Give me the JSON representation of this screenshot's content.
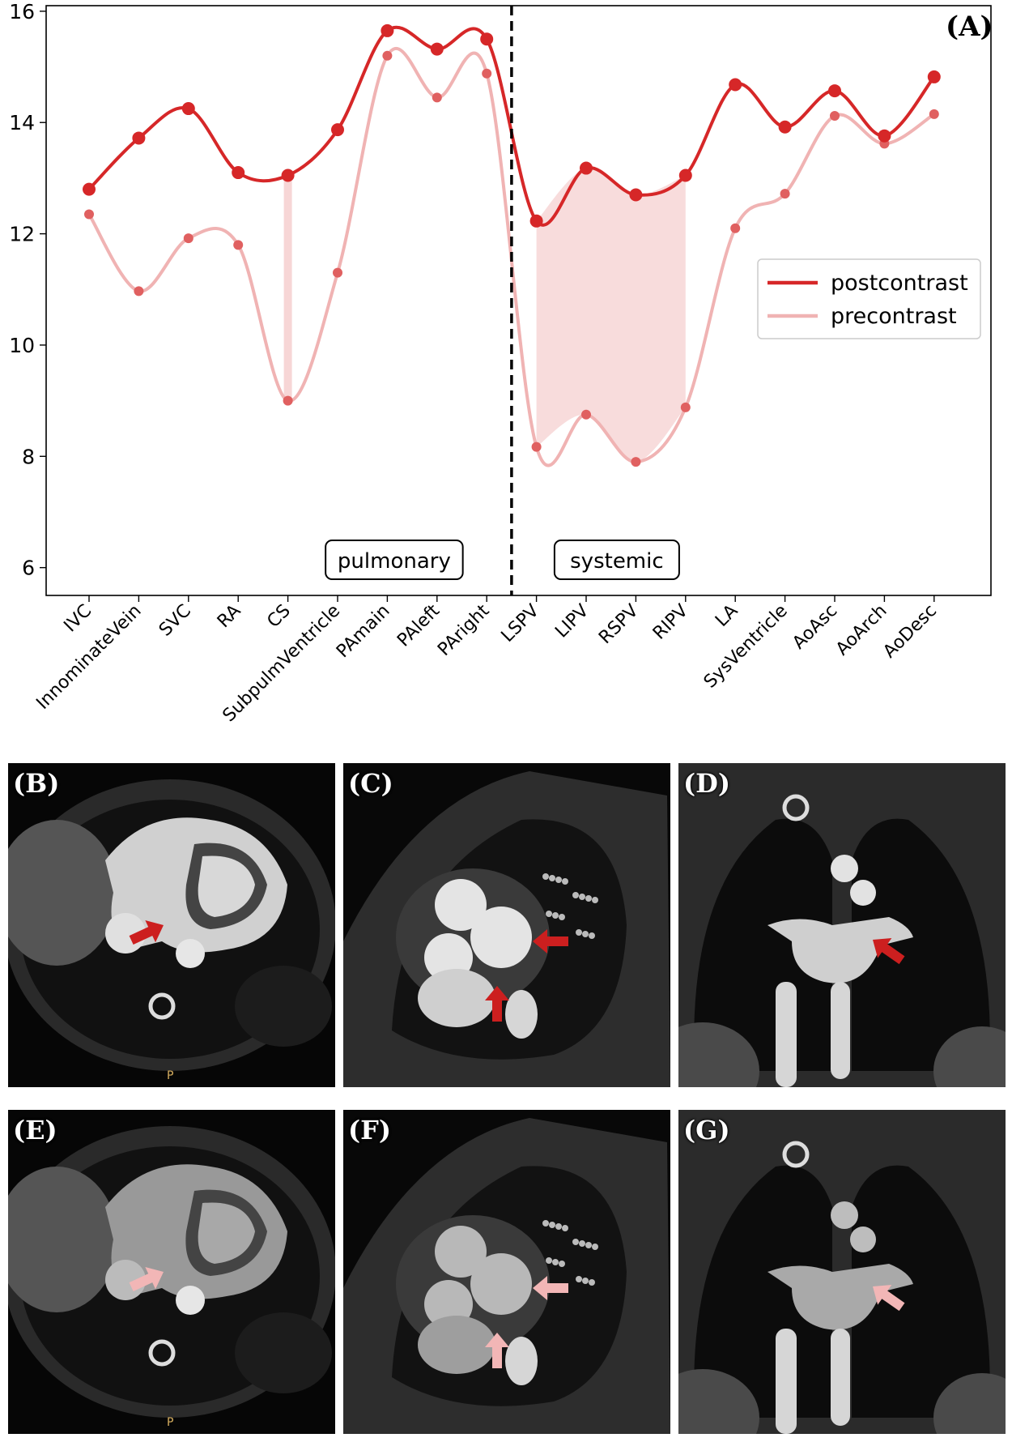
{
  "chart_data": {
    "type": "line",
    "panel_label": "(A)",
    "categories": [
      "IVC",
      "InnominateVein",
      "SVC",
      "RA",
      "CS",
      "SubpulmVentricle",
      "PAmain",
      "PAleft",
      "PAright",
      "LSPV",
      "LIPV",
      "RSPV",
      "RIPV",
      "LA",
      "SysVentricle",
      "AoAsc",
      "AoArch",
      "AoDesc"
    ],
    "series": [
      {
        "name": "postcontrast",
        "color": "#d62728",
        "values": [
          12.8,
          13.72,
          14.25,
          13.1,
          13.05,
          13.87,
          15.65,
          15.32,
          15.5,
          12.23,
          13.18,
          12.7,
          13.05,
          14.68,
          13.92,
          14.57,
          13.76,
          14.82
        ]
      },
      {
        "name": "precontrast",
        "color": "#f0b3b3",
        "values": [
          12.35,
          10.97,
          11.92,
          11.8,
          9.0,
          11.3,
          15.2,
          14.45,
          14.88,
          8.17,
          8.75,
          7.9,
          8.88,
          12.1,
          12.72,
          14.12,
          13.62,
          14.15
        ]
      }
    ],
    "ylim": [
      5.5,
      16.1
    ],
    "yticks": [
      "6",
      "8",
      "10",
      "12",
      "14",
      "16"
    ],
    "ytick_values": [
      6,
      8,
      10,
      12,
      14,
      16
    ],
    "divider_after_category": "PAright",
    "shaded_categories": [
      "CS",
      "LSPV",
      "LIPV",
      "RSPV",
      "RIPV"
    ],
    "region_labels": [
      {
        "text": "pulmonary",
        "side": "left"
      },
      {
        "text": "systemic",
        "side": "right"
      }
    ],
    "legend_position": "center-right",
    "xlabel": "",
    "ylabel": "",
    "title": ""
  },
  "panels": [
    {
      "label": "(B)",
      "view": "axial",
      "arrow_color": "#cc1f1f",
      "marker": "P"
    },
    {
      "label": "(C)",
      "view": "sagittal",
      "arrow_color": "#cc1f1f"
    },
    {
      "label": "(D)",
      "view": "coronal",
      "arrow_color": "#cc1f1f"
    },
    {
      "label": "(E)",
      "view": "axial",
      "arrow_color": "#f2b6b6",
      "marker": "P"
    },
    {
      "label": "(F)",
      "view": "sagittal",
      "arrow_color": "#f2b6b6"
    },
    {
      "label": "(G)",
      "view": "coronal",
      "arrow_color": "#f2b6b6"
    }
  ]
}
